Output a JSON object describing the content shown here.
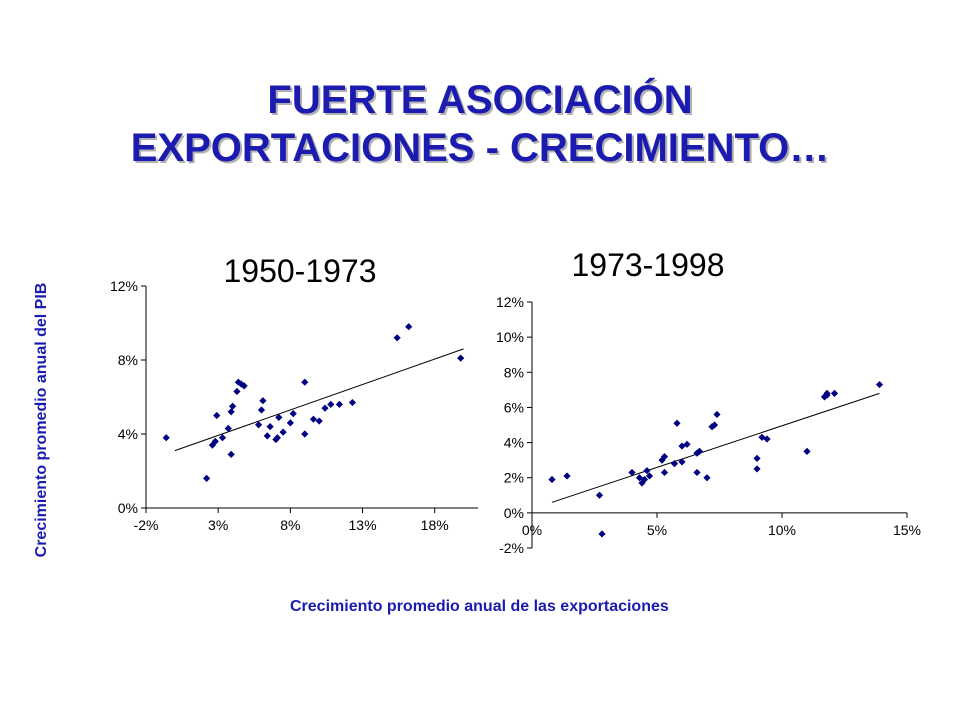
{
  "slide": {
    "title_line1": "FUERTE ASOCIACIÓN",
    "title_line2": "EXPORTACIONES - CRECIMIENTO…",
    "ylabel": "Crecimiento promedio anual del PIB",
    "xlabel": "Crecimiento promedio anual de las exportaciones"
  },
  "colors": {
    "title": "#1b1bb0",
    "marker": "#000080",
    "axis": "#000000"
  },
  "chart_data": [
    {
      "type": "scatter",
      "title": "1950-1973",
      "xlim": [
        -2,
        21
      ],
      "ylim": [
        0,
        12
      ],
      "x_ticks": [
        -2,
        3,
        8,
        13,
        18
      ],
      "x_tick_labels": [
        "-2%",
        "3%",
        "8%",
        "13%",
        "18%"
      ],
      "y_ticks": [
        0,
        4,
        8,
        12
      ],
      "y_tick_labels": [
        "0%",
        "4%",
        "8%",
        "12%"
      ],
      "grid": false,
      "trendline": [
        [
          0,
          3.1
        ],
        [
          20,
          8.6
        ]
      ],
      "points": [
        [
          -0.6,
          3.8
        ],
        [
          2.2,
          1.6
        ],
        [
          2.6,
          3.4
        ],
        [
          2.8,
          3.6
        ],
        [
          2.9,
          5.0
        ],
        [
          3.3,
          3.8
        ],
        [
          3.7,
          4.3
        ],
        [
          3.9,
          5.2
        ],
        [
          4.0,
          5.5
        ],
        [
          3.9,
          2.9
        ],
        [
          4.3,
          6.3
        ],
        [
          4.4,
          6.8
        ],
        [
          4.6,
          6.7
        ],
        [
          4.8,
          6.6
        ],
        [
          5.8,
          4.5
        ],
        [
          6.0,
          5.3
        ],
        [
          6.1,
          5.8
        ],
        [
          6.4,
          3.9
        ],
        [
          6.6,
          4.4
        ],
        [
          7.0,
          3.7
        ],
        [
          7.1,
          3.8
        ],
        [
          7.2,
          4.9
        ],
        [
          7.5,
          4.1
        ],
        [
          8.0,
          4.6
        ],
        [
          8.2,
          5.1
        ],
        [
          9.0,
          4.0
        ],
        [
          9.0,
          6.8
        ],
        [
          9.6,
          4.8
        ],
        [
          10.0,
          4.7
        ],
        [
          10.4,
          5.4
        ],
        [
          10.8,
          5.6
        ],
        [
          11.4,
          5.6
        ],
        [
          12.3,
          5.7
        ],
        [
          15.4,
          9.2
        ],
        [
          16.2,
          9.8
        ],
        [
          19.8,
          8.1
        ]
      ]
    },
    {
      "type": "scatter",
      "title": "1973-1998",
      "xlim": [
        0,
        15
      ],
      "ylim": [
        -2,
        12
      ],
      "x_ticks": [
        0,
        5,
        10,
        15
      ],
      "x_tick_labels": [
        "0%",
        "5%",
        "10%",
        "15%"
      ],
      "y_ticks": [
        -2,
        0,
        2,
        4,
        6,
        8,
        10,
        12
      ],
      "y_tick_labels": [
        "-2%",
        "0%",
        "2%",
        "4%",
        "6%",
        "8%",
        "10%",
        "12%"
      ],
      "grid": false,
      "trendline": [
        [
          0.8,
          0.6
        ],
        [
          13.9,
          6.8
        ]
      ],
      "points": [
        [
          0.8,
          1.9
        ],
        [
          1.4,
          2.1
        ],
        [
          2.7,
          1.0
        ],
        [
          2.8,
          -1.2
        ],
        [
          4.0,
          2.3
        ],
        [
          4.3,
          2.0
        ],
        [
          4.4,
          1.7
        ],
        [
          4.5,
          1.9
        ],
        [
          4.6,
          2.4
        ],
        [
          4.7,
          2.1
        ],
        [
          5.2,
          3.0
        ],
        [
          5.3,
          2.3
        ],
        [
          5.3,
          3.2
        ],
        [
          5.7,
          2.8
        ],
        [
          5.8,
          5.1
        ],
        [
          6.0,
          2.9
        ],
        [
          6.0,
          3.8
        ],
        [
          6.2,
          3.9
        ],
        [
          6.6,
          3.4
        ],
        [
          6.6,
          2.3
        ],
        [
          6.7,
          3.5
        ],
        [
          7.0,
          2.0
        ],
        [
          7.2,
          4.9
        ],
        [
          7.3,
          5.0
        ],
        [
          7.4,
          5.6
        ],
        [
          9.0,
          3.1
        ],
        [
          9.0,
          2.5
        ],
        [
          9.2,
          4.3
        ],
        [
          9.4,
          4.2
        ],
        [
          11.0,
          3.5
        ],
        [
          11.7,
          6.6
        ],
        [
          11.8,
          6.7
        ],
        [
          11.8,
          6.8
        ],
        [
          12.1,
          6.8
        ],
        [
          13.9,
          7.3
        ]
      ]
    }
  ]
}
